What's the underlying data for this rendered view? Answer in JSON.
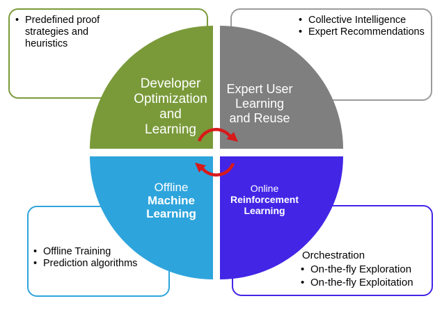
{
  "colors": {
    "developer_quadrant": "#7a9a3a",
    "expert_quadrant": "#7f7f7f",
    "offline_quadrant": "#2ea4dc",
    "online_quadrant": "#4325e6",
    "cycle_arrows": "#d71a1a",
    "box_tl_border": "#7a9a3a",
    "box_tr_border": "#9b9b9b",
    "box_bl_border": "#2ea4dc",
    "box_br_border": "#4325e6"
  },
  "quadrants": {
    "developer": {
      "lines": [
        "Developer",
        "Optimization",
        "and",
        "Learning"
      ]
    },
    "expert": {
      "lines": [
        "Expert User",
        "Learning",
        "and Reuse"
      ]
    },
    "offline": {
      "line1": "Offline",
      "line2": "Machine",
      "line3": "Learning"
    },
    "online": {
      "line1": "Online",
      "line2": "Reinforcement",
      "line3": "Learning"
    }
  },
  "boxes": {
    "top_left": {
      "items": [
        "Predefined proof strategies and heuristics"
      ]
    },
    "top_right": {
      "items": [
        "Collective Intelligence",
        "Expert Recommendations"
      ]
    },
    "bottom_left": {
      "items": [
        "Offline Training",
        "Prediction algorithms"
      ]
    },
    "bottom_right": {
      "heading": "Orchestration",
      "items": [
        "On-the-fly Exploration",
        "On-the-fly Exploitation"
      ]
    }
  }
}
